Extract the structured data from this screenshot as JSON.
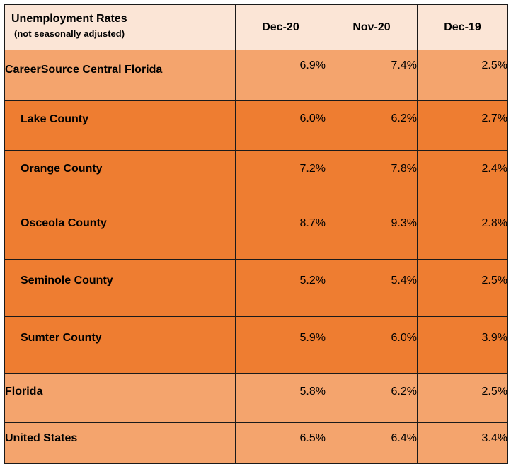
{
  "chart_data": {
    "type": "table",
    "header": {
      "title": "Unemployment Rates",
      "subtitle": "(not seasonally adjusted)"
    },
    "columns": [
      "Dec-20",
      "Nov-20",
      "Dec-19"
    ],
    "rows": [
      {
        "label": "CareerSource Central Florida",
        "values": [
          "6.9%",
          "7.4%",
          "2.5%"
        ]
      },
      {
        "label": "Lake County",
        "values": [
          "6.0%",
          "6.2%",
          "2.7%"
        ]
      },
      {
        "label": "Orange County",
        "values": [
          "7.2%",
          "7.8%",
          "2.4%"
        ]
      },
      {
        "label": "Osceola County",
        "values": [
          "8.7%",
          "9.3%",
          "2.8%"
        ]
      },
      {
        "label": "Seminole County",
        "values": [
          "5.2%",
          "5.4%",
          "2.5%"
        ]
      },
      {
        "label": "Sumter County",
        "values": [
          "5.9%",
          "6.0%",
          "3.9%"
        ]
      },
      {
        "label": "Florida",
        "values": [
          "5.8%",
          "6.2%",
          "2.5%"
        ]
      },
      {
        "label": "United States",
        "values": [
          "6.5%",
          "6.4%",
          "3.4%"
        ]
      }
    ],
    "colors": {
      "header_fill": "#fbe5d6",
      "region_fill": "#f4a46d",
      "county_fill": "#ee7d31",
      "border": "#1a1a1a"
    }
  }
}
